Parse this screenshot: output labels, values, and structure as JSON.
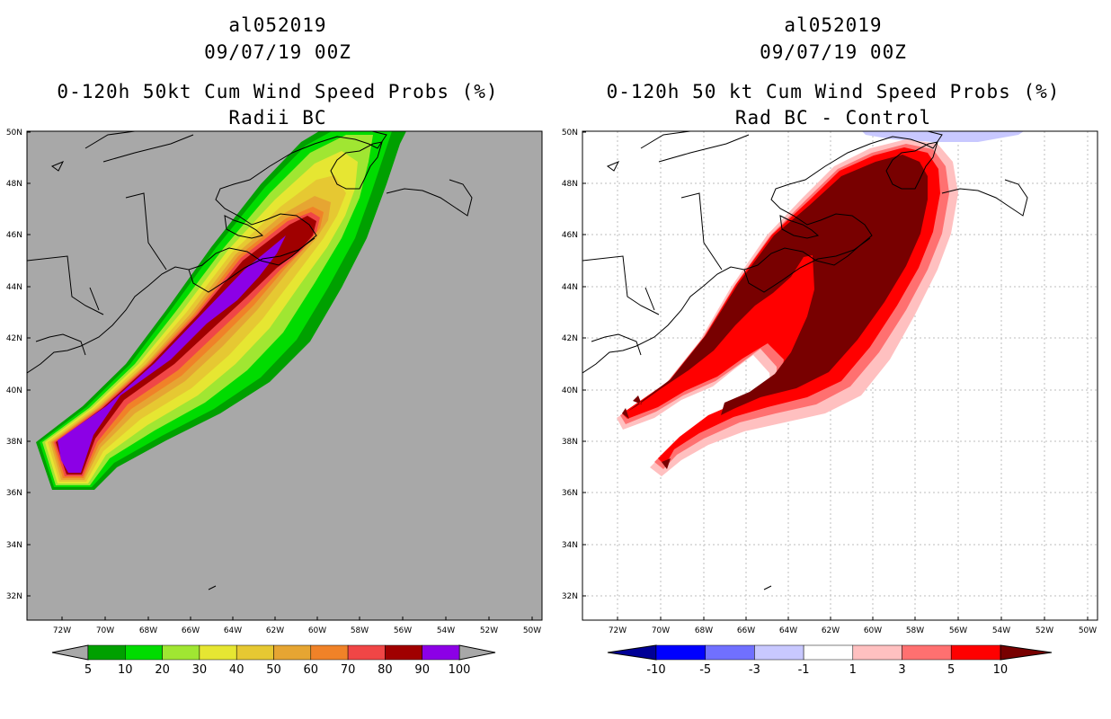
{
  "panels": [
    {
      "id": "radii-bc",
      "storm_id": "al052019",
      "datetime": "09/07/19 00Z",
      "title": "0-120h 50kt Cum Wind Speed Probs (%)",
      "subtitle": "Radii BC",
      "background_color": "#a8a8a8",
      "colorbar": {
        "colors": [
          "#00a000",
          "#00dc00",
          "#a0e632",
          "#e6e632",
          "#e6c832",
          "#e6a532",
          "#f08228",
          "#f04646",
          "#a00000",
          "#8c00e6"
        ],
        "labels": [
          "5",
          "10",
          "20",
          "30",
          "40",
          "50",
          "60",
          "70",
          "80",
          "90",
          "100"
        ]
      }
    },
    {
      "id": "rad-bc-minus-control",
      "storm_id": "al052019",
      "datetime": "09/07/19 00Z",
      "title": "0-120h 50 kt Cum Wind Speed Probs (%)",
      "subtitle": "Rad BC - Control",
      "background_color": "#ffffff",
      "colorbar": {
        "colors": [
          "#0000ff",
          "#7070ff",
          "#c8c8ff",
          "#ffffff",
          "#ffc0c0",
          "#ff7070",
          "#ff0000"
        ],
        "labels": [
          "-10",
          "-5",
          "-3",
          "-1",
          "1",
          "3",
          "5",
          "10"
        ]
      }
    }
  ],
  "lat_labels": [
    "50N",
    "48N",
    "46N",
    "44N",
    "42N",
    "40N",
    "38N",
    "36N",
    "34N",
    "32N"
  ],
  "lon_labels": [
    "72W",
    "70W",
    "68W",
    "66W",
    "64W",
    "62W",
    "60W",
    "58W",
    "56W",
    "54W",
    "52W",
    "50W"
  ]
}
